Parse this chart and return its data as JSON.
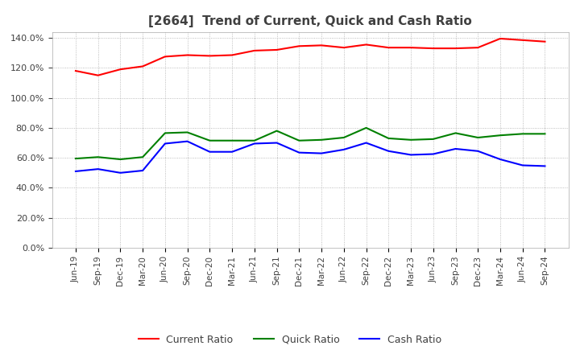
{
  "title": "[2664]  Trend of Current, Quick and Cash Ratio",
  "x_labels": [
    "Jun-19",
    "Sep-19",
    "Dec-19",
    "Mar-20",
    "Jun-20",
    "Sep-20",
    "Dec-20",
    "Mar-21",
    "Jun-21",
    "Sep-21",
    "Dec-21",
    "Mar-22",
    "Jun-22",
    "Sep-22",
    "Dec-22",
    "Mar-23",
    "Jun-23",
    "Sep-23",
    "Dec-23",
    "Mar-24",
    "Jun-24",
    "Sep-24"
  ],
  "current_ratio": [
    118.0,
    115.0,
    119.0,
    121.0,
    127.5,
    128.5,
    128.0,
    128.5,
    131.5,
    132.0,
    134.5,
    135.0,
    133.5,
    135.5,
    133.5,
    133.5,
    133.0,
    133.0,
    133.5,
    139.5,
    138.5,
    137.5
  ],
  "quick_ratio": [
    59.5,
    60.5,
    59.0,
    60.5,
    76.5,
    77.0,
    71.5,
    71.5,
    71.5,
    78.0,
    71.5,
    72.0,
    73.5,
    80.0,
    73.0,
    72.0,
    72.5,
    76.5,
    73.5,
    75.0,
    76.0,
    76.0
  ],
  "cash_ratio": [
    51.0,
    52.5,
    50.0,
    51.5,
    69.5,
    71.0,
    64.0,
    64.0,
    69.5,
    70.0,
    63.5,
    63.0,
    65.5,
    70.0,
    64.5,
    62.0,
    62.5,
    66.0,
    64.5,
    59.0,
    55.0,
    54.5
  ],
  "current_color": "#FF0000",
  "quick_color": "#008000",
  "cash_color": "#0000FF",
  "ylim": [
    0,
    144
  ],
  "yticks": [
    0,
    20,
    40,
    60,
    80,
    100,
    120,
    140
  ],
  "background_color": "#FFFFFF",
  "plot_bg_color": "#FFFFFF",
  "grid_color": "#AAAAAA",
  "title_color": "#404040"
}
